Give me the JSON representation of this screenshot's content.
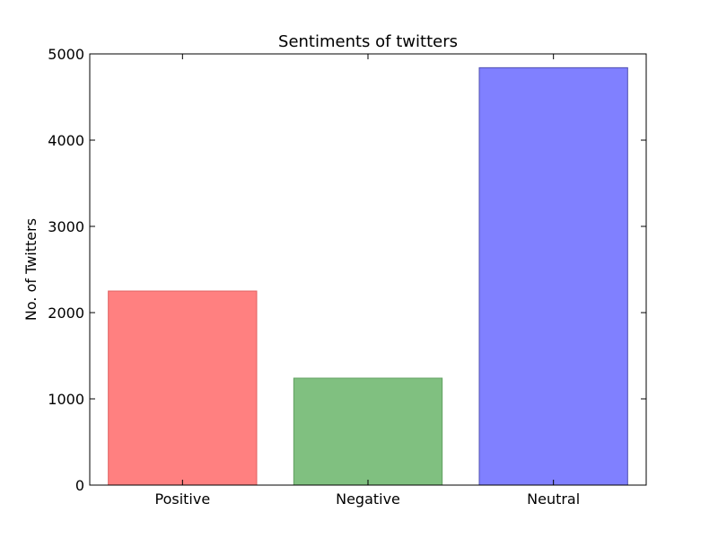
{
  "chart_data": {
    "type": "bar",
    "title": "Sentiments of twitters",
    "xlabel": "",
    "ylabel": "No. of Twitters",
    "categories": [
      "Positive",
      "Negative",
      "Neutral"
    ],
    "values": [
      2250,
      1240,
      4840
    ],
    "colors": [
      "#ff8080",
      "#80c080",
      "#8080ff"
    ],
    "edge_colors": [
      "#e06060",
      "#60a060",
      "#5050b0"
    ],
    "ylim": [
      0,
      5000
    ],
    "yticks": [
      0,
      1000,
      2000,
      3000,
      4000,
      5000
    ],
    "ytick_labels": [
      "0",
      "1000",
      "2000",
      "3000",
      "4000",
      "5000"
    ],
    "grid": false,
    "legend": "none"
  }
}
